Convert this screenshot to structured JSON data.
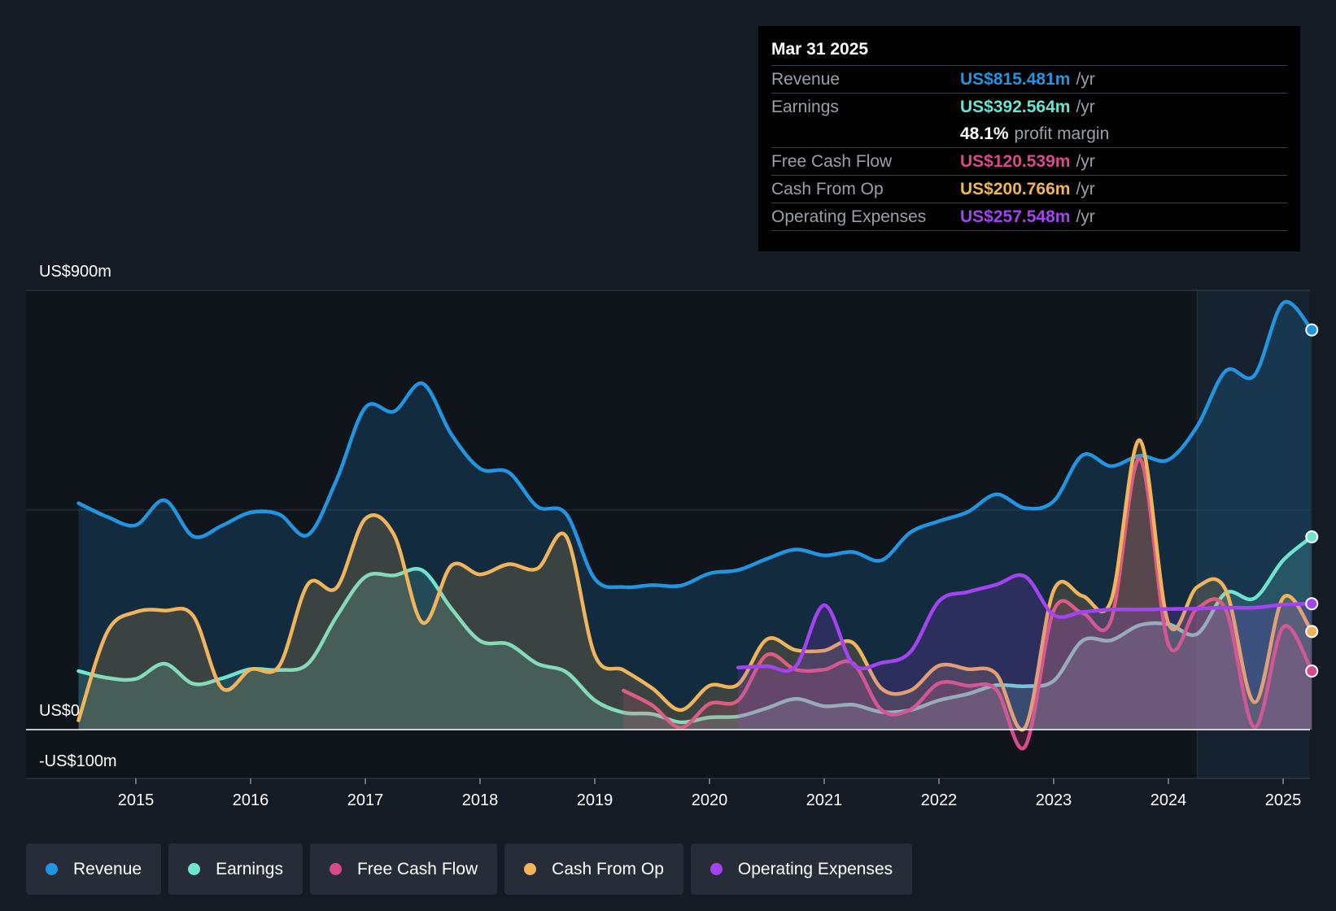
{
  "tooltip": {
    "date": "Mar 31 2025",
    "rows": [
      {
        "label": "Revenue",
        "value": "US$815.481m",
        "unit": "/yr",
        "color": "#2394df"
      },
      {
        "label": "Earnings",
        "value": "US$392.564m",
        "unit": "/yr",
        "color": "#6fe3d0"
      },
      {
        "margin_value": "48.1%",
        "margin_text": "profit margin"
      },
      {
        "label": "Free Cash Flow",
        "value": "US$120.539m",
        "unit": "/yr",
        "color": "#d94a8c"
      },
      {
        "label": "Cash From Op",
        "value": "US$200.766m",
        "unit": "/yr",
        "color": "#f0b45b"
      },
      {
        "label": "Operating Expenses",
        "value": "US$257.548m",
        "unit": "/yr",
        "color": "#a244f0"
      }
    ]
  },
  "legend": [
    {
      "label": "Revenue",
      "color": "#2394df"
    },
    {
      "label": "Earnings",
      "color": "#6fe3d0"
    },
    {
      "label": "Free Cash Flow",
      "color": "#d94a8c"
    },
    {
      "label": "Cash From Op",
      "color": "#f0b45b"
    },
    {
      "label": "Operating Expenses",
      "color": "#a244f0"
    }
  ],
  "chart_data": {
    "type": "area",
    "y_labels": [
      "US$900m",
      "US$0",
      "-US$100m"
    ],
    "ylim": [
      -100,
      900
    ],
    "xlim": [
      2014.0,
      2025.25
    ],
    "x_ticks": [
      "2015",
      "2016",
      "2017",
      "2018",
      "2019",
      "2020",
      "2021",
      "2022",
      "2023",
      "2024",
      "2025"
    ],
    "forecast_start": 2024.25,
    "series": [
      {
        "name": "Revenue",
        "color": "#2394df",
        "fill": true,
        "end_dot": true,
        "points": [
          [
            2014.5,
            464
          ],
          [
            2014.75,
            436
          ],
          [
            2015,
            419
          ],
          [
            2015.25,
            470
          ],
          [
            2015.5,
            396
          ],
          [
            2015.75,
            418
          ],
          [
            2016,
            445
          ],
          [
            2016.25,
            441
          ],
          [
            2016.5,
            399
          ],
          [
            2016.75,
            512
          ],
          [
            2017,
            660
          ],
          [
            2017.25,
            652
          ],
          [
            2017.5,
            709
          ],
          [
            2017.75,
            605
          ],
          [
            2018,
            535
          ],
          [
            2018.25,
            527
          ],
          [
            2018.5,
            457
          ],
          [
            2018.75,
            442
          ],
          [
            2019,
            309
          ],
          [
            2019.25,
            292
          ],
          [
            2019.5,
            296
          ],
          [
            2019.75,
            295
          ],
          [
            2020,
            320
          ],
          [
            2020.25,
            327
          ],
          [
            2020.5,
            350
          ],
          [
            2020.75,
            369
          ],
          [
            2021,
            357
          ],
          [
            2021.25,
            364
          ],
          [
            2021.5,
            347
          ],
          [
            2021.75,
            404
          ],
          [
            2022,
            427
          ],
          [
            2022.25,
            446
          ],
          [
            2022.5,
            482
          ],
          [
            2022.75,
            454
          ],
          [
            2023,
            468
          ],
          [
            2023.25,
            562
          ],
          [
            2023.5,
            540
          ],
          [
            2023.75,
            561
          ],
          [
            2024,
            553
          ],
          [
            2024.25,
            621
          ],
          [
            2024.5,
            735
          ],
          [
            2024.75,
            726
          ],
          [
            2025,
            874
          ],
          [
            2025.25,
            819
          ]
        ]
      },
      {
        "name": "Earnings",
        "color": "#6fe3d0",
        "fill": true,
        "end_dot": true,
        "points": [
          [
            2014.5,
            120
          ],
          [
            2014.75,
            106
          ],
          [
            2015,
            104
          ],
          [
            2015.25,
            135
          ],
          [
            2015.5,
            94
          ],
          [
            2015.75,
            105
          ],
          [
            2016,
            124
          ],
          [
            2016.25,
            122
          ],
          [
            2016.5,
            135
          ],
          [
            2016.75,
            232
          ],
          [
            2017,
            313
          ],
          [
            2017.25,
            316
          ],
          [
            2017.5,
            326
          ],
          [
            2017.75,
            248
          ],
          [
            2018,
            182
          ],
          [
            2018.25,
            175
          ],
          [
            2018.5,
            135
          ],
          [
            2018.75,
            118
          ],
          [
            2019,
            60
          ],
          [
            2019.25,
            35
          ],
          [
            2019.5,
            32
          ],
          [
            2019.75,
            15
          ],
          [
            2020,
            25
          ],
          [
            2020.25,
            27
          ],
          [
            2020.5,
            44
          ],
          [
            2020.75,
            63
          ],
          [
            2021,
            48
          ],
          [
            2021.25,
            51
          ],
          [
            2021.5,
            36
          ],
          [
            2021.75,
            40
          ],
          [
            2022,
            60
          ],
          [
            2022.25,
            73
          ],
          [
            2022.5,
            91
          ],
          [
            2022.75,
            89
          ],
          [
            2023,
            100
          ],
          [
            2023.25,
            182
          ],
          [
            2023.5,
            183
          ],
          [
            2023.75,
            214
          ],
          [
            2024,
            216
          ],
          [
            2024.25,
            196
          ],
          [
            2024.5,
            280
          ],
          [
            2024.75,
            269
          ],
          [
            2025,
            347
          ],
          [
            2025.25,
            395
          ]
        ]
      },
      {
        "name": "Free Cash Flow",
        "color": "#d94a8c",
        "fill": true,
        "end_dot": true,
        "points": [
          [
            2019.25,
            80
          ],
          [
            2019.5,
            50
          ],
          [
            2019.75,
            4
          ],
          [
            2020,
            53
          ],
          [
            2020.25,
            60
          ],
          [
            2020.5,
            153
          ],
          [
            2020.75,
            123
          ],
          [
            2021,
            123
          ],
          [
            2021.25,
            136
          ],
          [
            2021.5,
            40
          ],
          [
            2021.75,
            41
          ],
          [
            2022,
            95
          ],
          [
            2022.25,
            90
          ],
          [
            2022.5,
            82
          ],
          [
            2022.75,
            -35
          ],
          [
            2023,
            244
          ],
          [
            2023.25,
            239
          ],
          [
            2023.5,
            224
          ],
          [
            2023.75,
            555
          ],
          [
            2024,
            175
          ],
          [
            2024.25,
            248
          ],
          [
            2024.5,
            246
          ],
          [
            2024.75,
            5
          ],
          [
            2025,
            210
          ],
          [
            2025.25,
            120
          ]
        ]
      },
      {
        "name": "Cash From Op",
        "color": "#f0b45b",
        "fill": true,
        "end_dot": true,
        "points": [
          [
            2014.5,
            19
          ],
          [
            2014.75,
            200
          ],
          [
            2015,
            241
          ],
          [
            2015.25,
            244
          ],
          [
            2015.5,
            233
          ],
          [
            2015.75,
            85
          ],
          [
            2016,
            123
          ],
          [
            2016.25,
            131
          ],
          [
            2016.5,
            298
          ],
          [
            2016.75,
            291
          ],
          [
            2017,
            432
          ],
          [
            2017.25,
            399
          ],
          [
            2017.5,
            219
          ],
          [
            2017.75,
            336
          ],
          [
            2018,
            318
          ],
          [
            2018.25,
            339
          ],
          [
            2018.5,
            330
          ],
          [
            2018.75,
            396
          ],
          [
            2019,
            153
          ],
          [
            2019.25,
            122
          ],
          [
            2019.5,
            85
          ],
          [
            2019.75,
            40
          ],
          [
            2020,
            90
          ],
          [
            2020.25,
            93
          ],
          [
            2020.5,
            185
          ],
          [
            2020.75,
            163
          ],
          [
            2021,
            162
          ],
          [
            2021.25,
            178
          ],
          [
            2021.5,
            84
          ],
          [
            2021.75,
            80
          ],
          [
            2022,
            131
          ],
          [
            2022.25,
            124
          ],
          [
            2022.5,
            114
          ],
          [
            2022.75,
            4
          ],
          [
            2023,
            285
          ],
          [
            2023.25,
            274
          ],
          [
            2023.5,
            264
          ],
          [
            2023.75,
            593
          ],
          [
            2024,
            218
          ],
          [
            2024.25,
            292
          ],
          [
            2024.5,
            286
          ],
          [
            2024.75,
            56
          ],
          [
            2025,
            270
          ],
          [
            2025.25,
            201
          ]
        ]
      },
      {
        "name": "Operating Expenses",
        "color": "#a244f0",
        "fill": true,
        "end_dot": true,
        "points": [
          [
            2020.25,
            127
          ],
          [
            2020.5,
            130
          ],
          [
            2020.75,
            129
          ],
          [
            2021,
            255
          ],
          [
            2021.25,
            134
          ],
          [
            2021.5,
            137
          ],
          [
            2021.75,
            159
          ],
          [
            2022,
            263
          ],
          [
            2022.25,
            282
          ],
          [
            2022.5,
            297
          ],
          [
            2022.75,
            314
          ],
          [
            2023,
            235
          ],
          [
            2023.25,
            241
          ],
          [
            2023.5,
            246
          ],
          [
            2023.75,
            246
          ],
          [
            2024,
            247
          ],
          [
            2024.25,
            248
          ],
          [
            2024.5,
            250
          ],
          [
            2024.75,
            250
          ],
          [
            2025,
            256
          ],
          [
            2025.25,
            258
          ]
        ]
      }
    ]
  }
}
